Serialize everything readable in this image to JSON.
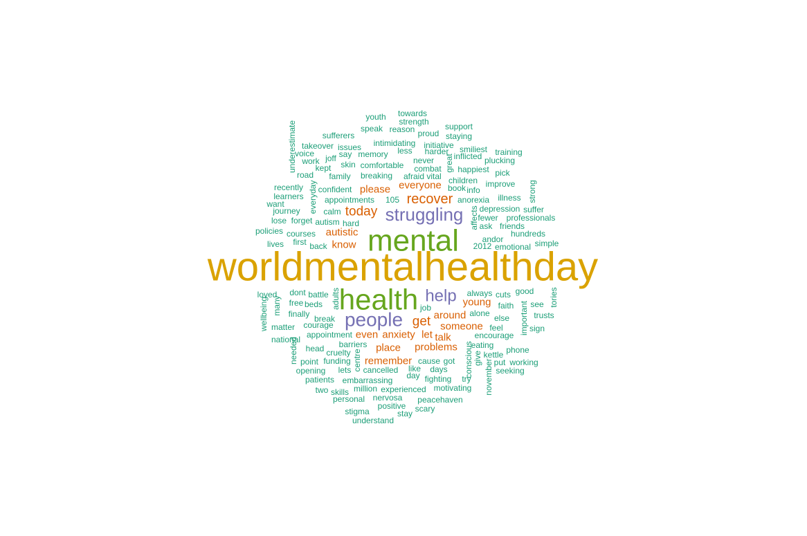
{
  "colors": {
    "tier1": "#DAA200",
    "tier2": "#66A61E",
    "tier3": "#7570B3",
    "tier4": "#D95F02",
    "tier5": "#1B9E77"
  },
  "words": [
    {
      "text": "worldmentalhealthday",
      "tier": 1,
      "orient": "h"
    },
    {
      "text": "mental",
      "tier": 2,
      "orient": "h"
    },
    {
      "text": "health",
      "tier": 2,
      "orient": "h"
    },
    {
      "text": "struggling",
      "tier": 3,
      "orient": "h"
    },
    {
      "text": "people",
      "tier": 3,
      "orient": "h"
    },
    {
      "text": "help",
      "tier": 3,
      "orient": "h"
    },
    {
      "text": "recover",
      "tier": 4,
      "orient": "h"
    },
    {
      "text": "today",
      "tier": 4,
      "orient": "h"
    },
    {
      "text": "get",
      "tier": 4,
      "orient": "h"
    },
    {
      "text": "please",
      "tier": 4,
      "orient": "h"
    },
    {
      "text": "everyone",
      "tier": 4,
      "orient": "h"
    },
    {
      "text": "autistic",
      "tier": 4,
      "orient": "h"
    },
    {
      "text": "know",
      "tier": 4,
      "orient": "h"
    },
    {
      "text": "young",
      "tier": 4,
      "orient": "h"
    },
    {
      "text": "around",
      "tier": 4,
      "orient": "h"
    },
    {
      "text": "someone",
      "tier": 4,
      "orient": "h"
    },
    {
      "text": "even",
      "tier": 4,
      "orient": "h"
    },
    {
      "text": "anxiety",
      "tier": 4,
      "orient": "h"
    },
    {
      "text": "let",
      "tier": 4,
      "orient": "h"
    },
    {
      "text": "talk",
      "tier": 4,
      "orient": "h"
    },
    {
      "text": "place",
      "tier": 4,
      "orient": "h"
    },
    {
      "text": "problems",
      "tier": 4,
      "orient": "h"
    },
    {
      "text": "remember",
      "tier": 4,
      "orient": "h"
    },
    {
      "text": "youth",
      "tier": 5,
      "orient": "h"
    },
    {
      "text": "towards",
      "tier": 5,
      "orient": "h"
    },
    {
      "text": "strength",
      "tier": 5,
      "orient": "h"
    },
    {
      "text": "speak",
      "tier": 5,
      "orient": "h"
    },
    {
      "text": "reason",
      "tier": 5,
      "orient": "h"
    },
    {
      "text": "proud",
      "tier": 5,
      "orient": "h"
    },
    {
      "text": "support",
      "tier": 5,
      "orient": "h"
    },
    {
      "text": "sufferers",
      "tier": 5,
      "orient": "h"
    },
    {
      "text": "staying",
      "tier": 5,
      "orient": "h"
    },
    {
      "text": "intimidating",
      "tier": 5,
      "orient": "h"
    },
    {
      "text": "initiative",
      "tier": 5,
      "orient": "h"
    },
    {
      "text": "takeover",
      "tier": 5,
      "orient": "h"
    },
    {
      "text": "issues",
      "tier": 5,
      "orient": "h"
    },
    {
      "text": "less",
      "tier": 5,
      "orient": "h"
    },
    {
      "text": "harder",
      "tier": 5,
      "orient": "h"
    },
    {
      "text": "smiliest",
      "tier": 5,
      "orient": "h"
    },
    {
      "text": "voice",
      "tier": 5,
      "orient": "h"
    },
    {
      "text": "say",
      "tier": 5,
      "orient": "h"
    },
    {
      "text": "memory",
      "tier": 5,
      "orient": "h"
    },
    {
      "text": "inflicted",
      "tier": 5,
      "orient": "h"
    },
    {
      "text": "training",
      "tier": 5,
      "orient": "h"
    },
    {
      "text": "work",
      "tier": 5,
      "orient": "h"
    },
    {
      "text": "joff",
      "tier": 5,
      "orient": "h"
    },
    {
      "text": "never",
      "tier": 5,
      "orient": "h"
    },
    {
      "text": "plucking",
      "tier": 5,
      "orient": "h"
    },
    {
      "text": "kept",
      "tier": 5,
      "orient": "h"
    },
    {
      "text": "skin",
      "tier": 5,
      "orient": "h"
    },
    {
      "text": "comfortable",
      "tier": 5,
      "orient": "h"
    },
    {
      "text": "combat",
      "tier": 5,
      "orient": "h"
    },
    {
      "text": "happiest",
      "tier": 5,
      "orient": "h"
    },
    {
      "text": "road",
      "tier": 5,
      "orient": "h"
    },
    {
      "text": "family",
      "tier": 5,
      "orient": "h"
    },
    {
      "text": "breaking",
      "tier": 5,
      "orient": "h"
    },
    {
      "text": "afraid",
      "tier": 5,
      "orient": "h"
    },
    {
      "text": "vital",
      "tier": 5,
      "orient": "h"
    },
    {
      "text": "children",
      "tier": 5,
      "orient": "h"
    },
    {
      "text": "pick",
      "tier": 5,
      "orient": "h"
    },
    {
      "text": "recently",
      "tier": 5,
      "orient": "h"
    },
    {
      "text": "confident",
      "tier": 5,
      "orient": "h"
    },
    {
      "text": "book",
      "tier": 5,
      "orient": "h"
    },
    {
      "text": "info",
      "tier": 5,
      "orient": "h"
    },
    {
      "text": "improve",
      "tier": 5,
      "orient": "h"
    },
    {
      "text": "learners",
      "tier": 5,
      "orient": "h"
    },
    {
      "text": "appointments",
      "tier": 5,
      "orient": "h"
    },
    {
      "text": "105",
      "tier": 5,
      "orient": "h"
    },
    {
      "text": "anorexia",
      "tier": 5,
      "orient": "h"
    },
    {
      "text": "illness",
      "tier": 5,
      "orient": "h"
    },
    {
      "text": "want",
      "tier": 5,
      "orient": "h"
    },
    {
      "text": "journey",
      "tier": 5,
      "orient": "h"
    },
    {
      "text": "calm",
      "tier": 5,
      "orient": "h"
    },
    {
      "text": "depression",
      "tier": 5,
      "orient": "h"
    },
    {
      "text": "suffer",
      "tier": 5,
      "orient": "h"
    },
    {
      "text": "lose",
      "tier": 5,
      "orient": "h"
    },
    {
      "text": "forget",
      "tier": 5,
      "orient": "h"
    },
    {
      "text": "fewer",
      "tier": 5,
      "orient": "h"
    },
    {
      "text": "professionals",
      "tier": 5,
      "orient": "h"
    },
    {
      "text": "autism",
      "tier": 5,
      "orient": "h"
    },
    {
      "text": "hard",
      "tier": 5,
      "orient": "h"
    },
    {
      "text": "ask",
      "tier": 5,
      "orient": "h"
    },
    {
      "text": "friends",
      "tier": 5,
      "orient": "h"
    },
    {
      "text": "policies",
      "tier": 5,
      "orient": "h"
    },
    {
      "text": "courses",
      "tier": 5,
      "orient": "h"
    },
    {
      "text": "hundreds",
      "tier": 5,
      "orient": "h"
    },
    {
      "text": "andor",
      "tier": 5,
      "orient": "h"
    },
    {
      "text": "first",
      "tier": 5,
      "orient": "h"
    },
    {
      "text": "lives",
      "tier": 5,
      "orient": "h"
    },
    {
      "text": "back",
      "tier": 5,
      "orient": "h"
    },
    {
      "text": "2012",
      "tier": 5,
      "orient": "h"
    },
    {
      "text": "emotional",
      "tier": 5,
      "orient": "h"
    },
    {
      "text": "simple",
      "tier": 5,
      "orient": "h"
    },
    {
      "text": "loved",
      "tier": 5,
      "orient": "h"
    },
    {
      "text": "dont",
      "tier": 5,
      "orient": "h"
    },
    {
      "text": "battle",
      "tier": 5,
      "orient": "h"
    },
    {
      "text": "always",
      "tier": 5,
      "orient": "h"
    },
    {
      "text": "good",
      "tier": 5,
      "orient": "h"
    },
    {
      "text": "cuts",
      "tier": 5,
      "orient": "h"
    },
    {
      "text": "free",
      "tier": 5,
      "orient": "h"
    },
    {
      "text": "beds",
      "tier": 5,
      "orient": "h"
    },
    {
      "text": "faith",
      "tier": 5,
      "orient": "h"
    },
    {
      "text": "see",
      "tier": 5,
      "orient": "h"
    },
    {
      "text": "job",
      "tier": 5,
      "orient": "h"
    },
    {
      "text": "alone",
      "tier": 5,
      "orient": "h"
    },
    {
      "text": "trusts",
      "tier": 5,
      "orient": "h"
    },
    {
      "text": "finally",
      "tier": 5,
      "orient": "h"
    },
    {
      "text": "break",
      "tier": 5,
      "orient": "h"
    },
    {
      "text": "else",
      "tier": 5,
      "orient": "h"
    },
    {
      "text": "matter",
      "tier": 5,
      "orient": "h"
    },
    {
      "text": "courage",
      "tier": 5,
      "orient": "h"
    },
    {
      "text": "feel",
      "tier": 5,
      "orient": "h"
    },
    {
      "text": "sign",
      "tier": 5,
      "orient": "h"
    },
    {
      "text": "appointment",
      "tier": 5,
      "orient": "h"
    },
    {
      "text": "encourage",
      "tier": 5,
      "orient": "h"
    },
    {
      "text": "national",
      "tier": 5,
      "orient": "h"
    },
    {
      "text": "barriers",
      "tier": 5,
      "orient": "h"
    },
    {
      "text": "eating",
      "tier": 5,
      "orient": "h"
    },
    {
      "text": "head",
      "tier": 5,
      "orient": "h"
    },
    {
      "text": "cruelty",
      "tier": 5,
      "orient": "h"
    },
    {
      "text": "phone",
      "tier": 5,
      "orient": "h"
    },
    {
      "text": "kettle",
      "tier": 5,
      "orient": "h"
    },
    {
      "text": "point",
      "tier": 5,
      "orient": "h"
    },
    {
      "text": "funding",
      "tier": 5,
      "orient": "h"
    },
    {
      "text": "cause",
      "tier": 5,
      "orient": "h"
    },
    {
      "text": "got",
      "tier": 5,
      "orient": "h"
    },
    {
      "text": "put",
      "tier": 5,
      "orient": "h"
    },
    {
      "text": "working",
      "tier": 5,
      "orient": "h"
    },
    {
      "text": "opening",
      "tier": 5,
      "orient": "h"
    },
    {
      "text": "lets",
      "tier": 5,
      "orient": "h"
    },
    {
      "text": "cancelled",
      "tier": 5,
      "orient": "h"
    },
    {
      "text": "like",
      "tier": 5,
      "orient": "h"
    },
    {
      "text": "days",
      "tier": 5,
      "orient": "h"
    },
    {
      "text": "seeking",
      "tier": 5,
      "orient": "h"
    },
    {
      "text": "day",
      "tier": 5,
      "orient": "h"
    },
    {
      "text": "patients",
      "tier": 5,
      "orient": "h"
    },
    {
      "text": "embarrassing",
      "tier": 5,
      "orient": "h"
    },
    {
      "text": "fighting",
      "tier": 5,
      "orient": "h"
    },
    {
      "text": "try",
      "tier": 5,
      "orient": "h"
    },
    {
      "text": "two",
      "tier": 5,
      "orient": "h"
    },
    {
      "text": "skills",
      "tier": 5,
      "orient": "h"
    },
    {
      "text": "million",
      "tier": 5,
      "orient": "h"
    },
    {
      "text": "experienced",
      "tier": 5,
      "orient": "h"
    },
    {
      "text": "motivating",
      "tier": 5,
      "orient": "h"
    },
    {
      "text": "personal",
      "tier": 5,
      "orient": "h"
    },
    {
      "text": "nervosa",
      "tier": 5,
      "orient": "h"
    },
    {
      "text": "peacehaven",
      "tier": 5,
      "orient": "h"
    },
    {
      "text": "positive",
      "tier": 5,
      "orient": "h"
    },
    {
      "text": "scary",
      "tier": 5,
      "orient": "h"
    },
    {
      "text": "stigma",
      "tier": 5,
      "orient": "h"
    },
    {
      "text": "stay",
      "tier": 5,
      "orient": "h"
    },
    {
      "text": "understand",
      "tier": 5,
      "orient": "h"
    },
    {
      "text": "underestimate",
      "tier": 5,
      "orient": "v"
    },
    {
      "text": "everyday",
      "tier": 5,
      "orient": "v"
    },
    {
      "text": "great",
      "tier": 5,
      "orient": "v"
    },
    {
      "text": "strong",
      "tier": 5,
      "orient": "v"
    },
    {
      "text": "affects",
      "tier": 5,
      "orient": "v"
    },
    {
      "text": "adults",
      "tier": 5,
      "orient": "v"
    },
    {
      "text": "many",
      "tier": 5,
      "orient": "v"
    },
    {
      "text": "wellbeing",
      "tier": 5,
      "orient": "v"
    },
    {
      "text": "tories",
      "tier": 5,
      "orient": "v"
    },
    {
      "text": "important",
      "tier": 5,
      "orient": "v"
    },
    {
      "text": "needed",
      "tier": 5,
      "orient": "v"
    },
    {
      "text": "centre",
      "tier": 5,
      "orient": "v"
    },
    {
      "text": "conscious",
      "tier": 5,
      "orient": "v"
    },
    {
      "text": "give",
      "tier": 5,
      "orient": "v"
    },
    {
      "text": "november",
      "tier": 5,
      "orient": "v"
    }
  ]
}
